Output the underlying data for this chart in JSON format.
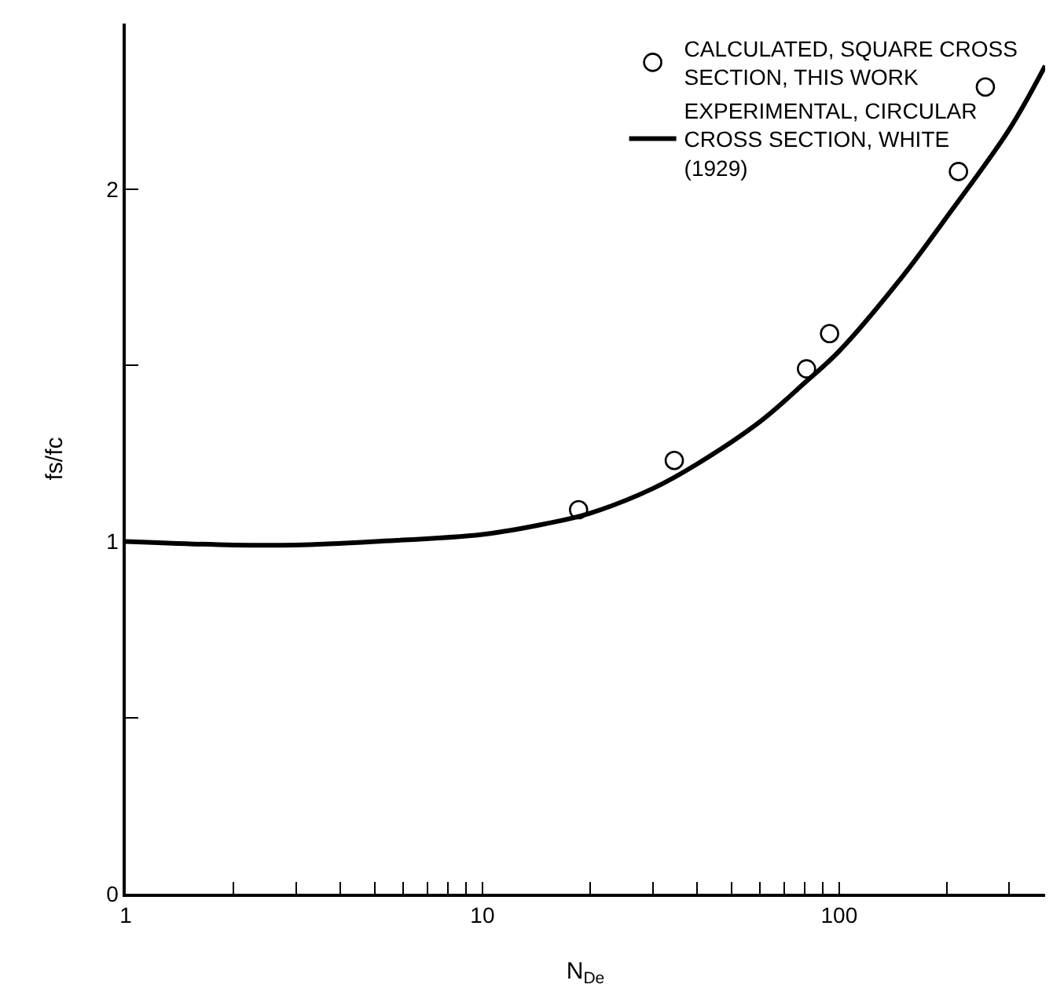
{
  "chart_data": {
    "type": "scatter",
    "xlabel": "N$_{De}$",
    "ylabel": "fs/fc",
    "log": "x",
    "grid": false,
    "legend": "top right",
    "xlim": [
      1,
      378
    ],
    "ylim": [
      0,
      2.47
    ],
    "xticks": [
      1,
      {
        "value": 2,
        "label": null
      },
      {
        "value": 3,
        "label": null
      },
      {
        "value": 4,
        "label": null
      },
      {
        "value": 5,
        "label": null
      },
      {
        "value": 6,
        "label": null
      },
      {
        "value": 7,
        "label": null
      },
      {
        "value": 8,
        "label": null
      },
      {
        "value": 9,
        "label": null
      },
      10,
      {
        "value": 20,
        "label": null
      },
      {
        "value": 30,
        "label": null
      },
      {
        "value": 40,
        "label": null
      },
      {
        "value": 50,
        "label": null
      },
      {
        "value": 60,
        "label": null
      },
      {
        "value": 70,
        "label": null
      },
      {
        "value": 80,
        "label": null
      },
      {
        "value": 90,
        "label": null
      },
      100,
      {
        "value": 200,
        "label": null
      },
      {
        "value": 300,
        "label": null
      }
    ],
    "yticks": [
      0,
      {
        "value": 0.5,
        "label": null
      },
      1,
      {
        "value": 1.5,
        "label": null
      },
      2
    ],
    "series": [
      {
        "name": "CALCULATED, SQUARE CROSS\nSECTION, THIS WORK",
        "marker": "circle",
        "color": "#000000",
        "x": [
          18.6,
          34.5,
          81,
          94,
          216,
          257
        ],
        "values": [
          1.09,
          1.23,
          1.49,
          1.59,
          2.05,
          2.29
        ]
      },
      {
        "name": "EXPERIMENTAL, CIRCULAR\nCROSS SECTION, WHITE\n(1929)",
        "type": "line",
        "marker": "none",
        "line_style": "solid",
        "color": "#000000",
        "x": [
          1,
          2,
          3,
          5,
          10,
          15,
          20,
          30,
          40,
          60,
          80,
          100,
          150,
          200,
          300,
          378
        ],
        "values": [
          1.0,
          0.99,
          0.99,
          1.0,
          1.02,
          1.05,
          1.08,
          1.15,
          1.22,
          1.34,
          1.45,
          1.54,
          1.75,
          1.92,
          2.17,
          2.35
        ]
      }
    ]
  }
}
